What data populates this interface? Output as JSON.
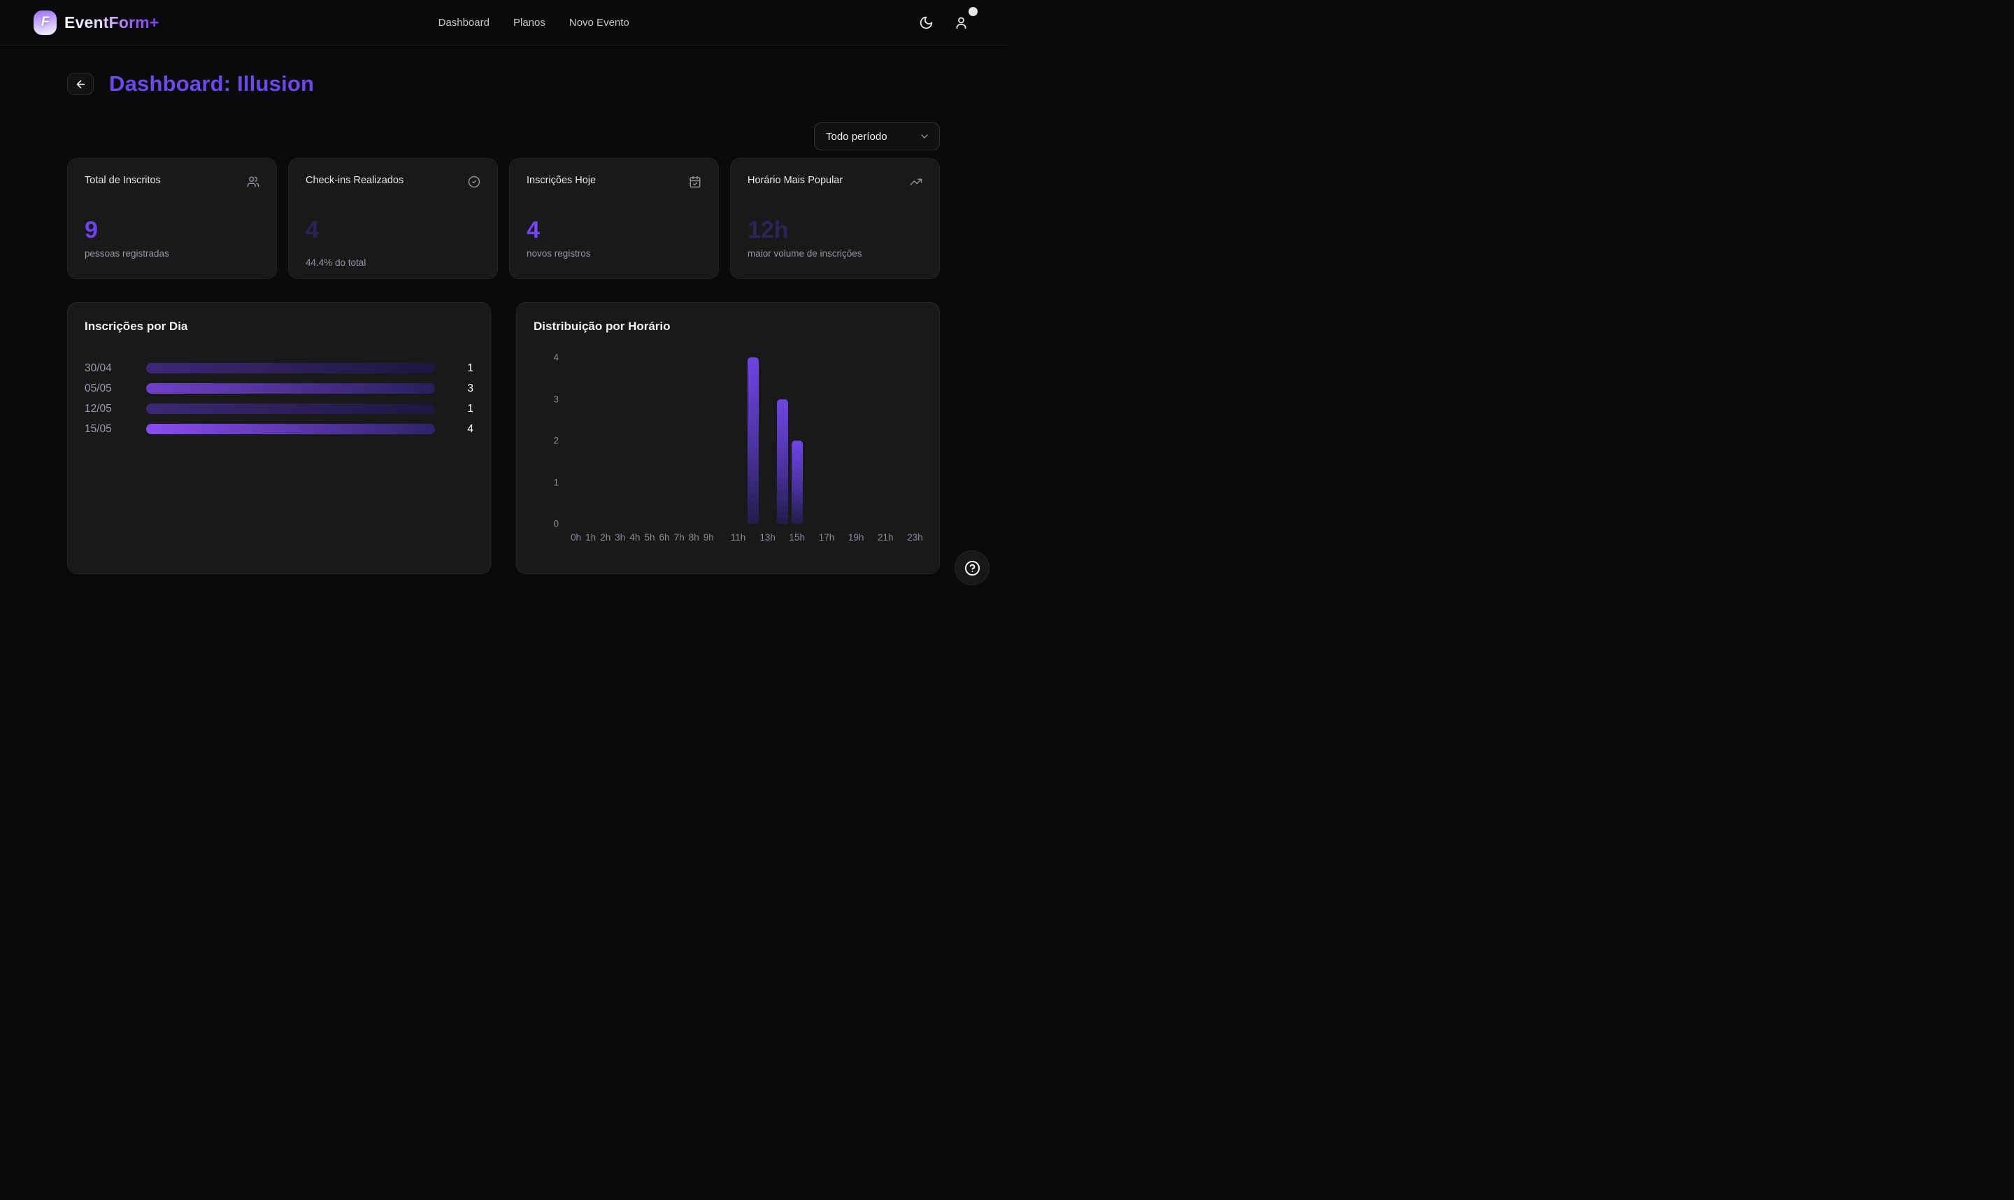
{
  "header": {
    "logo_letter": "F",
    "brand": "EventForm+",
    "nav": [
      {
        "label": "Dashboard"
      },
      {
        "label": "Planos"
      },
      {
        "label": "Novo Evento"
      }
    ]
  },
  "page": {
    "title": "Dashboard: Illusion",
    "period_filter": {
      "value": "Todo período"
    }
  },
  "stats": [
    {
      "title": "Total de Inscritos",
      "icon": "users-icon",
      "value": "9",
      "subtitle": "pessoas registradas",
      "value_color": "#6f42ec"
    },
    {
      "title": "Check-ins Realizados",
      "icon": "check-circle-icon",
      "value": "4",
      "subtitle": "44.4% do total",
      "value_color": "#2b2457",
      "progress_pct": 44.4
    },
    {
      "title": "Inscrições Hoje",
      "icon": "calendar-check-icon",
      "value": "4",
      "subtitle": "novos registros",
      "value_color": "#7445f0"
    },
    {
      "title": "Horário Mais Popular",
      "icon": "trending-up-icon",
      "value": "12h",
      "subtitle": "maior volume de inscrições",
      "value_color": "#2b2457"
    }
  ],
  "chart_data": [
    {
      "type": "bar",
      "orientation": "horizontal",
      "title": "Inscrições por Dia",
      "categories": [
        "30/04",
        "05/05",
        "12/05",
        "15/05"
      ],
      "values": [
        1,
        3,
        1,
        4
      ],
      "max": 4,
      "note": "all bars full-width; fill brightness encodes value; numeric value shown at right"
    },
    {
      "type": "bar",
      "orientation": "vertical",
      "title": "Distribuição por Horário",
      "x_hours": [
        12,
        14,
        15
      ],
      "values": [
        4,
        3,
        2
      ],
      "xticks": [
        "0h",
        "1h",
        "2h",
        "3h",
        "4h",
        "5h",
        "6h",
        "7h",
        "8h",
        "9h",
        "11h",
        "13h",
        "15h",
        "17h",
        "19h",
        "21h",
        "23h"
      ],
      "x_slots": 24,
      "yticks": [
        0,
        1,
        2,
        3,
        4
      ],
      "ylim": [
        0,
        4
      ],
      "grid": false,
      "legend": false
    }
  ],
  "colors": {
    "accent": "#6d49ea",
    "bar_gradient_top": "#6f44e2",
    "bar_gradient_bottom": "#221c49",
    "progress_fill": "#e9e7ee",
    "card_bg": "#19191b",
    "page_bg": "#0a0a0c"
  }
}
